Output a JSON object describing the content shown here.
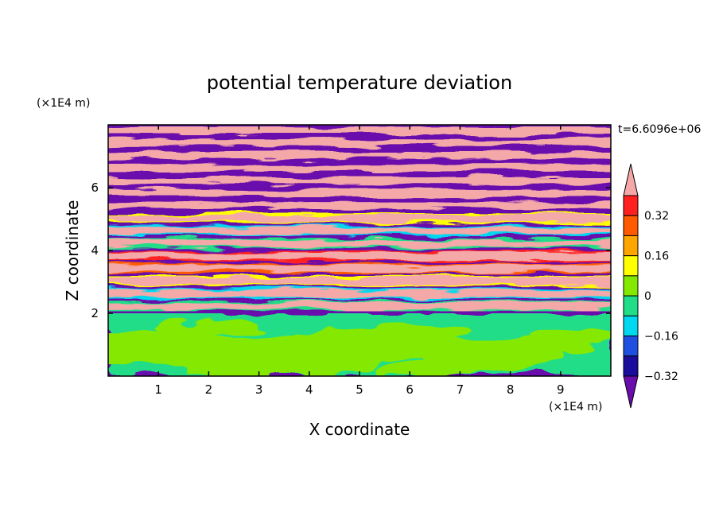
{
  "chart_data": {
    "type": "heatmap",
    "title": "potential temperature deviation",
    "xlabel": "X coordinate",
    "ylabel": "Z coordinate",
    "x_unit": "(×1E4 m)",
    "y_unit": "(×1E4 m)",
    "time_label": "t=6.6096e+06",
    "xlim": [
      0,
      10
    ],
    "ylim": [
      0,
      8
    ],
    "x_ticks": [
      "1",
      "2",
      "3",
      "4",
      "5",
      "6",
      "7",
      "8",
      "9"
    ],
    "y_ticks": [
      "2",
      "4",
      "6"
    ],
    "colorbar": {
      "labels": [
        "0.32",
        "0.16",
        "0",
        "−0.16",
        "−0.32"
      ],
      "colors": [
        "#6a0dad",
        "#1c0c9e",
        "#1f4fe0",
        "#00d8f0",
        "#22dd88",
        "#84e800",
        "#ffff00",
        "#ffa500",
        "#ff5a00",
        "#ff2020",
        "#f4a8a8"
      ]
    },
    "description_layers": {
      "lower_layer_top_z": 2.0,
      "lower_layer_colors": [
        "#22dd88",
        "#84e800"
      ],
      "upper_layer_band_colors": [
        "#6a0dad",
        "#f4a8a8"
      ]
    }
  }
}
